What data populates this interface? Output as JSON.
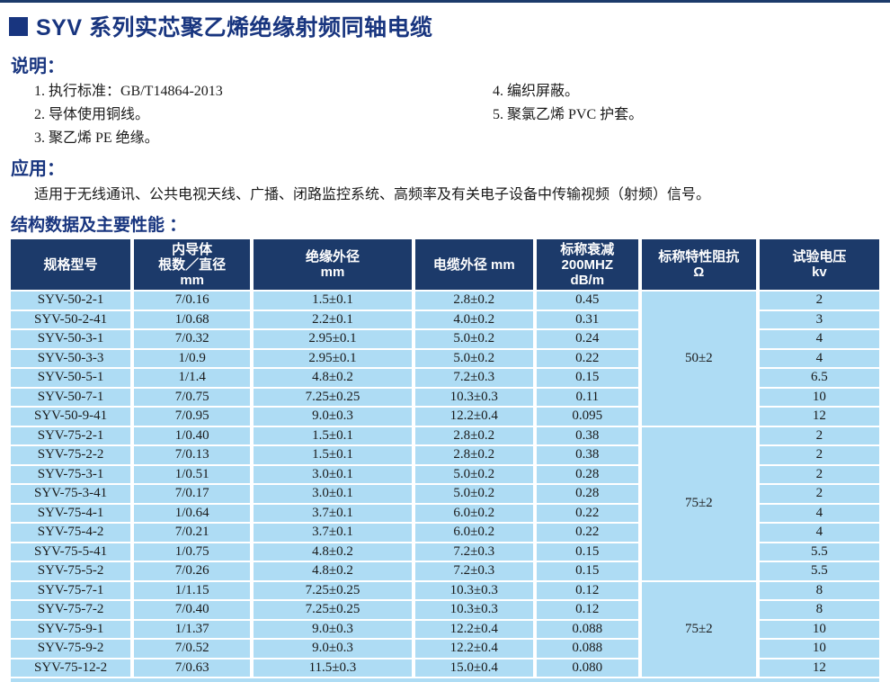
{
  "title": "SYV 系列实芯聚乙烯绝缘射频同轴电缆",
  "description": {
    "heading": "说明：",
    "items_left": [
      "1. 执行标准：GB/T14864-2013",
      "2. 导体使用铜线。",
      "3. 聚乙烯 PE 绝缘。"
    ],
    "items_right": [
      "4. 编织屏蔽。",
      "5. 聚氯乙烯 PVC 护套。"
    ]
  },
  "application": {
    "heading": "应用：",
    "text": "适用于无线通讯、公共电视天线、广播、闭路监控系统、高频率及有关电子设备中传输视频（射频）信号。"
  },
  "spec_section": {
    "heading": "结构数据及主要性能 ："
  },
  "colors": {
    "heading_navy": "#18357f",
    "table_header_navy": "#1c3a6a",
    "row_light_blue": "#aedcf4"
  },
  "spec_table": {
    "columns": [
      {
        "key": "model",
        "lines": [
          "规格型号"
        ]
      },
      {
        "key": "conductor",
        "lines": [
          "内导体",
          "根数／直径",
          "mm"
        ]
      },
      {
        "key": "insulation-od",
        "lines": [
          "绝缘外径",
          "mm"
        ]
      },
      {
        "key": "cable-od",
        "lines": [
          "电缆外径 mm"
        ]
      },
      {
        "key": "attenuation",
        "lines": [
          "标称衰减",
          "200MHZ",
          "dB/m"
        ]
      },
      {
        "key": "impedance",
        "lines": [
          "标称特性阻抗",
          "Ω"
        ]
      },
      {
        "key": "voltage",
        "lines": [
          "试验电压",
          "kv"
        ]
      }
    ],
    "groups": [
      {
        "impedance": "50±2",
        "rows": [
          [
            "SYV-50-2-1",
            "7/0.16",
            "1.5±0.1",
            "2.8±0.2",
            "0.45",
            "2"
          ],
          [
            "SYV-50-2-41",
            "1/0.68",
            "2.2±0.1",
            "4.0±0.2",
            "0.31",
            "3"
          ],
          [
            "SYV-50-3-1",
            "7/0.32",
            "2.95±0.1",
            "5.0±0.2",
            "0.24",
            "4"
          ],
          [
            "SYV-50-3-3",
            "1/0.9",
            "2.95±0.1",
            "5.0±0.2",
            "0.22",
            "4"
          ],
          [
            "SYV-50-5-1",
            "1/1.4",
            "4.8±0.2",
            "7.2±0.3",
            "0.15",
            "6.5"
          ],
          [
            "SYV-50-7-1",
            "7/0.75",
            "7.25±0.25",
            "10.3±0.3",
            "0.11",
            "10"
          ],
          [
            "SYV-50-9-41",
            "7/0.95",
            "9.0±0.3",
            "12.2±0.4",
            "0.095",
            "12"
          ]
        ]
      },
      {
        "impedance": "75±2",
        "rows": [
          [
            "SYV-75-2-1",
            "1/0.40",
            "1.5±0.1",
            "2.8±0.2",
            "0.38",
            "2"
          ],
          [
            "SYV-75-2-2",
            "7/0.13",
            "1.5±0.1",
            "2.8±0.2",
            "0.38",
            "2"
          ],
          [
            "SYV-75-3-1",
            "1/0.51",
            "3.0±0.1",
            "5.0±0.2",
            "0.28",
            "2"
          ],
          [
            "SYV-75-3-41",
            "7/0.17",
            "3.0±0.1",
            "5.0±0.2",
            "0.28",
            "2"
          ],
          [
            "SYV-75-4-1",
            "1/0.64",
            "3.7±0.1",
            "6.0±0.2",
            "0.22",
            "4"
          ],
          [
            "SYV-75-4-2",
            "7/0.21",
            "3.7±0.1",
            "6.0±0.2",
            "0.22",
            "4"
          ],
          [
            "SYV-75-5-41",
            "1/0.75",
            "4.8±0.2",
            "7.2±0.3",
            "0.15",
            "5.5"
          ],
          [
            "SYV-75-5-2",
            "7/0.26",
            "4.8±0.2",
            "7.2±0.3",
            "0.15",
            "5.5"
          ]
        ]
      },
      {
        "impedance": "75±2",
        "rows": [
          [
            "SYV-75-7-1",
            "1/1.15",
            "7.25±0.25",
            "10.3±0.3",
            "0.12",
            "8"
          ],
          [
            "SYV-75-7-2",
            "7/0.40",
            "7.25±0.25",
            "10.3±0.3",
            "0.12",
            "8"
          ],
          [
            "SYV-75-9-1",
            "1/1.37",
            "9.0±0.3",
            "12.2±0.4",
            "0.088",
            "10"
          ],
          [
            "SYV-75-9-2",
            "7/0.52",
            "9.0±0.3",
            "12.2±0.4",
            "0.088",
            "10"
          ],
          [
            "SYV-75-12-2",
            "7/0.63",
            "11.5±0.3",
            "15.0±0.4",
            "0.080",
            "12"
          ]
        ]
      }
    ]
  }
}
